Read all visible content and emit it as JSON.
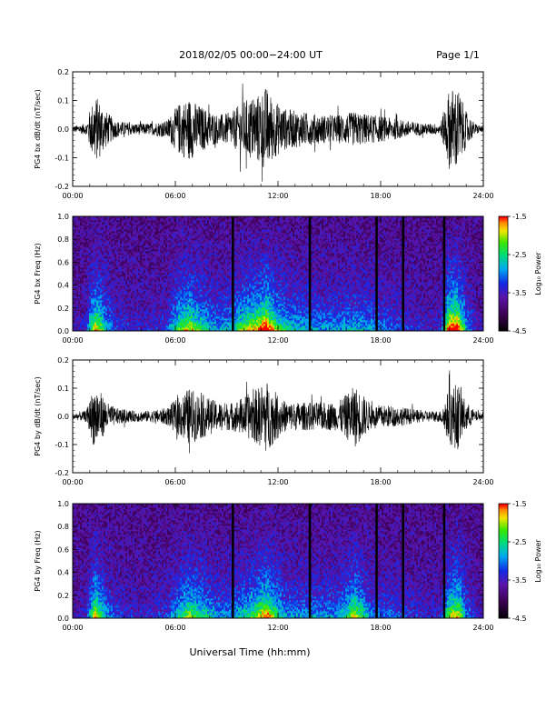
{
  "header": {
    "title": "2018/02/05  00:00−24:00 UT",
    "page": "Page 1/1"
  },
  "footer": {
    "xlabel": "Universal Time (hh:mm)"
  },
  "colors": {
    "axis": "#000000",
    "trace": "#000000",
    "background": "#000000"
  },
  "chart_data": [
    {
      "type": "line",
      "ylabel": "PG4 bx dB/dt (nT/sec)",
      "xlim": [
        0,
        24
      ],
      "ylim": [
        -0.2,
        0.2
      ],
      "x_ticks": [
        "00:00",
        "06:00",
        "12:00",
        "18:00",
        "24:00"
      ],
      "y_ticks": [
        "-0.2",
        "-0.1",
        "0.0",
        "0.1",
        "0.2"
      ],
      "activity_envelope": {
        "hours": [
          0,
          0.8,
          1.0,
          1.3,
          1.6,
          2.0,
          2.5,
          3.5,
          4.5,
          5.5,
          6.2,
          6.8,
          7.5,
          8.5,
          9.3,
          10.0,
          10.8,
          11.3,
          11.8,
          12.5,
          13.5,
          14.5,
          15.5,
          16.5,
          17.5,
          18.5,
          19.5,
          20.5,
          21.5,
          22.0,
          22.5,
          23.0,
          23.5,
          24.0
        ],
        "amplitude": [
          0.01,
          0.02,
          0.07,
          0.12,
          0.1,
          0.06,
          0.03,
          0.02,
          0.02,
          0.03,
          0.09,
          0.11,
          0.08,
          0.05,
          0.06,
          0.1,
          0.12,
          0.15,
          0.1,
          0.07,
          0.06,
          0.05,
          0.05,
          0.06,
          0.05,
          0.04,
          0.03,
          0.02,
          0.02,
          0.14,
          0.15,
          0.06,
          0.02,
          0.01
        ]
      }
    },
    {
      "type": "heatmap",
      "ylabel": "PG4 bx Freq (Hz)",
      "xlim": [
        0,
        24
      ],
      "ylim": [
        0.0,
        1.0
      ],
      "x_ticks": [
        "00:00",
        "06:00",
        "12:00",
        "18:00",
        "24:00"
      ],
      "y_ticks": [
        "0.0",
        "0.2",
        "0.4",
        "0.6",
        "0.8",
        "1.0"
      ],
      "colorbar": {
        "label": "Log₁₀ Power",
        "ticks": [
          "-1.5",
          "-2.5",
          "-3.5",
          "-4.5"
        ],
        "range": [
          -4.5,
          -1.5
        ]
      },
      "data_gap_hours": [
        9.35,
        13.85,
        17.75,
        19.3,
        21.7
      ]
    },
    {
      "type": "line",
      "ylabel": "PG4 by dB/dt (nT/sec)",
      "xlim": [
        0,
        24
      ],
      "ylim": [
        -0.2,
        0.2
      ],
      "x_ticks": [
        "00:00",
        "06:00",
        "12:00",
        "18:00",
        "24:00"
      ],
      "y_ticks": [
        "-0.2",
        "-0.1",
        "0.0",
        "0.1",
        "0.2"
      ],
      "activity_envelope": {
        "hours": [
          0,
          0.8,
          1.0,
          1.3,
          1.6,
          2.0,
          2.5,
          3.5,
          4.5,
          5.5,
          6.2,
          6.8,
          7.5,
          8.5,
          9.3,
          10.0,
          10.8,
          11.3,
          11.8,
          12.5,
          13.5,
          14.5,
          15.5,
          16.5,
          17.5,
          18.5,
          19.5,
          20.5,
          21.5,
          22.0,
          22.5,
          23.0,
          23.5,
          24.0
        ],
        "amplitude": [
          0.01,
          0.02,
          0.06,
          0.12,
          0.09,
          0.05,
          0.03,
          0.02,
          0.02,
          0.03,
          0.07,
          0.1,
          0.08,
          0.05,
          0.05,
          0.07,
          0.1,
          0.13,
          0.09,
          0.05,
          0.05,
          0.05,
          0.05,
          0.11,
          0.04,
          0.04,
          0.03,
          0.02,
          0.02,
          0.1,
          0.12,
          0.05,
          0.02,
          0.01
        ]
      }
    },
    {
      "type": "heatmap",
      "ylabel": "PG4 by Freq (Hz)",
      "xlim": [
        0,
        24
      ],
      "ylim": [
        0.0,
        1.0
      ],
      "x_ticks": [
        "00:00",
        "06:00",
        "12:00",
        "18:00",
        "24:00"
      ],
      "y_ticks": [
        "0.0",
        "0.2",
        "0.4",
        "0.6",
        "0.8",
        "1.0"
      ],
      "colorbar": {
        "label": "Log₁₀ Power",
        "ticks": [
          "-1.5",
          "-2.5",
          "-3.5",
          "-4.5"
        ],
        "range": [
          -4.5,
          -1.5
        ]
      },
      "data_gap_hours": [
        9.35,
        13.85,
        17.75,
        19.3,
        21.7
      ]
    }
  ]
}
